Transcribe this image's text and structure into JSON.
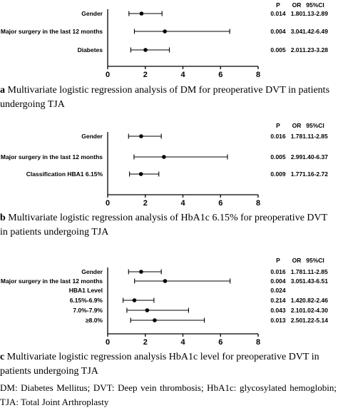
{
  "chart_data": [
    {
      "type": "forest",
      "caption": "a Multivariate logistic regression analysis of DM for preoperative DVT in patients undergoing TJA",
      "xlim": [
        0,
        8
      ],
      "xticks": [
        0,
        2,
        4,
        6,
        8
      ],
      "columns": [
        "P",
        "OR",
        "95%CI"
      ],
      "rows": [
        {
          "label": "Gender",
          "p": "0.014",
          "or_text": "1.80",
          "ci_text": "1.13-2.89",
          "or": 1.8,
          "lo": 1.13,
          "hi": 2.89
        },
        {
          "label": "Major surgery in the last 12 months",
          "p": "0.004",
          "or_text": "3.04",
          "ci_text": "1.42-6.49",
          "or": 3.04,
          "lo": 1.42,
          "hi": 6.49
        },
        {
          "label": "Diabetes",
          "p": "0.005",
          "or_text": "2.01",
          "ci_text": "1.23-3.28",
          "or": 2.01,
          "lo": 1.23,
          "hi": 3.28
        }
      ]
    },
    {
      "type": "forest",
      "caption": "b Multivariate logistic regression analysis of HbA1c 6.15% for preoperative DVT in patients undergoing TJA",
      "xlim": [
        0,
        8
      ],
      "xticks": [
        0,
        2,
        4,
        6,
        8
      ],
      "columns": [
        "P",
        "OR",
        "95%CI"
      ],
      "rows": [
        {
          "label": "Gender",
          "p": "0.016",
          "or_text": "1.78",
          "ci_text": "1.11-2.85",
          "or": 1.78,
          "lo": 1.11,
          "hi": 2.85
        },
        {
          "label": "Major surgery in the last 12 months",
          "p": "0.005",
          "or_text": "2.99",
          "ci_text": "1.40-6.37",
          "or": 2.99,
          "lo": 1.4,
          "hi": 6.37
        },
        {
          "label": "Classification HBA1 6.15%",
          "p": "0.009",
          "or_text": "1.77",
          "ci_text": "1.16-2.72",
          "or": 1.77,
          "lo": 1.16,
          "hi": 2.72
        }
      ]
    },
    {
      "type": "forest",
      "caption": "c Multivariate logistic regression analysis HbA1c level for preoperative DVT in patients undergoing TJA",
      "xlim": [
        0,
        8
      ],
      "xticks": [
        0,
        2,
        4,
        6,
        8
      ],
      "columns": [
        "P",
        "OR",
        "95%CI"
      ],
      "rows": [
        {
          "label": "Gender",
          "p": "0.016",
          "or_text": "1.78",
          "ci_text": "1.11-2.85",
          "or": 1.78,
          "lo": 1.11,
          "hi": 2.85
        },
        {
          "label": "Major surgery in the last 12 months",
          "p": "0.004",
          "or_text": "3.05",
          "ci_text": "1.43-6.51",
          "or": 3.05,
          "lo": 1.43,
          "hi": 6.51
        },
        {
          "label": "HBA1 Level",
          "p": "0.024",
          "or_text": "",
          "ci_text": ""
        },
        {
          "label": "6.15%-6.9%",
          "p": "0.214",
          "or_text": "1.42",
          "ci_text": "0.82-2.46",
          "or": 1.42,
          "lo": 0.82,
          "hi": 2.46
        },
        {
          "label": "7.0%-7.9%",
          "p": "0.043",
          "or_text": "2.10",
          "ci_text": "1.02-4.30",
          "or": 2.1,
          "lo": 1.02,
          "hi": 4.3
        },
        {
          "label": "≥8.0%",
          "p": "0.013",
          "or_text": "2.50",
          "ci_text": "1.22-5.14",
          "or": 2.5,
          "lo": 1.22,
          "hi": 5.14
        }
      ]
    }
  ],
  "captions": {
    "a_letter": "a",
    "a_text": " Multivariate logistic regression analysis of DM for preoperative DVT in patients undergoing TJA",
    "b_letter": "b",
    "b_text": " Multivariate logistic regression analysis of HbA1c 6.15% for preoperative DVT in patients undergoing TJA",
    "c_letter": "c",
    "c_text": " Multivariate logistic regression analysis HbA1c level for preoperative DVT in patients undergoing TJA"
  },
  "footnote": "DM: Diabetes Mellitus; DVT: Deep vein thrombosis; HbA1c: glycosylated hemoglobin; TJA: Total Joint Arthroplasty"
}
